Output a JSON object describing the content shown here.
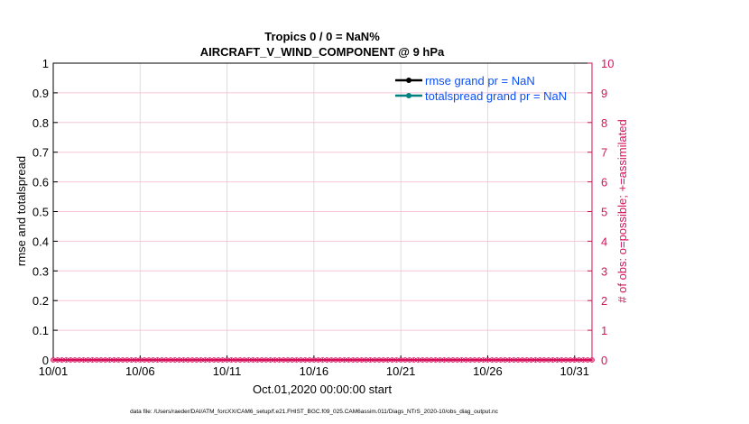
{
  "chart_data": {
    "type": "line",
    "title": [
      "Tropics 0 / 0 = NaN%",
      "AIRCRAFT_V_WIND_COMPONENT @ 9 hPa"
    ],
    "xlabel": "Oct.01,2020 00:00:00 start",
    "ylabel": "rmse and totalspread",
    "ylabel_right": "# of obs: o=possible; +=assimilated",
    "x_ticks": [
      "10/01",
      "10/06",
      "10/11",
      "10/16",
      "10/21",
      "10/26",
      "10/31"
    ],
    "x_range_days": [
      0,
      31
    ],
    "ylim": [
      0,
      1
    ],
    "y_ticks": [
      "0",
      "0.1",
      "0.2",
      "0.3",
      "0.4",
      "0.5",
      "0.6",
      "0.7",
      "0.8",
      "0.9",
      "1"
    ],
    "ylim_right": [
      0,
      10
    ],
    "y_ticks_right": [
      "0",
      "1",
      "2",
      "3",
      "4",
      "5",
      "6",
      "7",
      "8",
      "9",
      "10"
    ],
    "grid": true,
    "legend_placement": "top-right",
    "series": [
      {
        "name": "rmse grand pr = NaN",
        "color": "#000000",
        "values": []
      },
      {
        "name": "totalspread grand pr = NaN",
        "color": "#008080",
        "values": []
      },
      {
        "name": "obs possible/assimilated",
        "color": "#d6105a",
        "x_step_days": 0.25,
        "values_constant": 0
      }
    ],
    "colors": {
      "right_axis": "#d6105a",
      "legend_text": "#0b4ff5"
    },
    "footer": "data file: /Users/raeder/DAI/ATM_forcXX/CAM6_setup/f.e21.FHIST_BGC.f09_025.CAM6assim.011/Diags_NTrS_2020-10/obs_diag_output.nc"
  }
}
